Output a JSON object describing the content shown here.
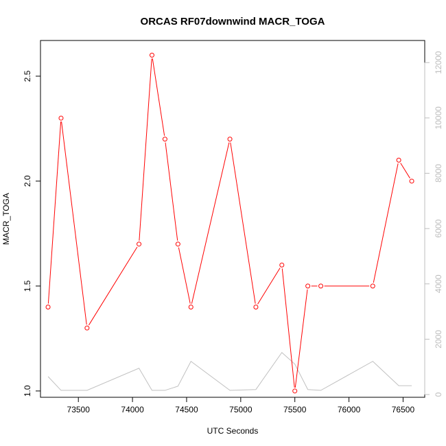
{
  "chart_data": {
    "type": "line",
    "title": "ORCAS RF07downwind MACR_TOGA",
    "xlabel": "UTC Seconds",
    "ylabel": "MACR_TOGA",
    "xlim": [
      73150,
      76700
    ],
    "ylim": [
      0.97,
      2.67
    ],
    "y2lim": [
      -100,
      12800
    ],
    "x_ticks": [
      73500,
      74000,
      74500,
      75000,
      75500,
      76000,
      76500
    ],
    "y_ticks": [
      1.0,
      1.5,
      2.0,
      2.5
    ],
    "y2_ticks": [
      0,
      2000,
      4000,
      6000,
      8000,
      10000,
      12000
    ],
    "grid": false,
    "colors": {
      "primary": "#ff0000",
      "secondary": "#c0c0c0"
    },
    "series": [
      {
        "axis": "left",
        "style": "line+circle",
        "x": [
          73220,
          73340,
          73580,
          74060,
          74180,
          74300,
          74420,
          74540,
          74900,
          75140,
          75380,
          75500,
          75620,
          75740,
          76220,
          76460,
          76580
        ],
        "values": [
          1.4,
          2.3,
          1.3,
          1.7,
          2.6,
          2.2,
          1.7,
          1.4,
          2.2,
          1.4,
          1.6,
          1.0,
          1.5,
          1.5,
          1.5,
          2.1,
          2.0
        ]
      },
      {
        "axis": "right",
        "style": "line",
        "x": [
          73220,
          73340,
          73580,
          74060,
          74180,
          74300,
          74420,
          74540,
          74900,
          75140,
          75380,
          75500,
          75620,
          75740,
          76220,
          76460,
          76580
        ],
        "values": [
          650,
          150,
          150,
          950,
          150,
          150,
          300,
          1200,
          150,
          180,
          1520,
          1100,
          180,
          150,
          1200,
          320,
          320
        ]
      }
    ]
  }
}
